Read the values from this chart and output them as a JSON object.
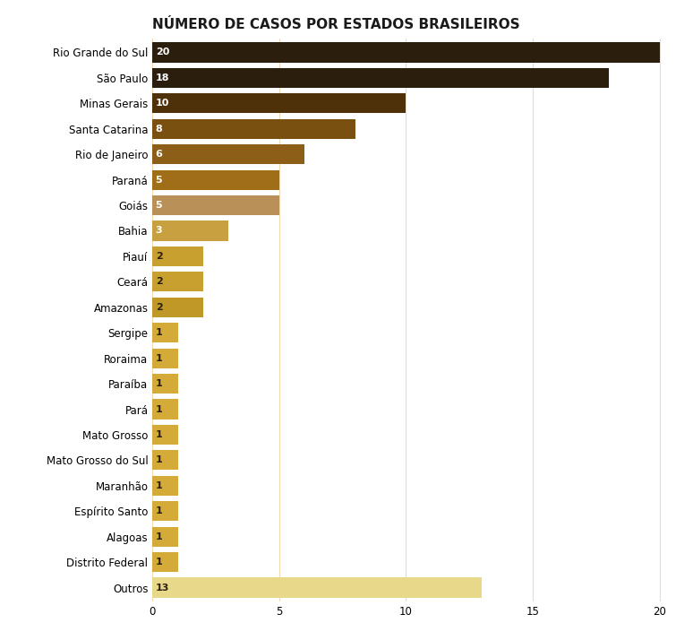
{
  "title": "NÚMERO DE CASOS POR ESTADOS BRASILEIROS",
  "categories": [
    "Rio Grande do Sul",
    "São Paulo",
    "Minas Gerais",
    "Santa Catarina",
    "Rio de Janeiro",
    "Paraná",
    "Goiás",
    "Bahia",
    "Piauí",
    "Ceará",
    "Amazonas",
    "Sergipe",
    "Roraima",
    "Paraíba",
    "Pará",
    "Mato Grosso",
    "Mato Grosso do Sul",
    "Maranhão",
    "Espírito Santo",
    "Alagoas",
    "Distrito Federal",
    "Outros"
  ],
  "values": [
    20,
    18,
    10,
    8,
    6,
    5,
    5,
    3,
    2,
    2,
    2,
    1,
    1,
    1,
    1,
    1,
    1,
    1,
    1,
    1,
    1,
    13
  ],
  "bar_colors": [
    "#2b1e0c",
    "#2b1e0c",
    "#4e3108",
    "#7a5010",
    "#8c5e18",
    "#a06e18",
    "#b89058",
    "#c8a040",
    "#c8a030",
    "#c8a030",
    "#c09828",
    "#d4aa38",
    "#d4aa38",
    "#d4aa38",
    "#d4aa38",
    "#d4aa38",
    "#d4aa38",
    "#d4aa38",
    "#d4aa38",
    "#d4aa38",
    "#d4aa38",
    "#e8d88a"
  ],
  "label_colors": [
    "#ffffff",
    "#ffffff",
    "#ffffff",
    "#ffffff",
    "#ffffff",
    "#ffffff",
    "#ffffff",
    "#ffffff",
    "#2b1e0c",
    "#2b1e0c",
    "#2b1e0c",
    "#2b1e0c",
    "#2b1e0c",
    "#2b1e0c",
    "#2b1e0c",
    "#2b1e0c",
    "#2b1e0c",
    "#2b1e0c",
    "#2b1e0c",
    "#2b1e0c",
    "#2b1e0c",
    "#2b1e0c"
  ],
  "background_color": "#ffffff",
  "grid_color": "#f5d9b0",
  "xlim": [
    0,
    20.5
  ],
  "xticks": [
    0,
    5,
    10,
    15,
    20
  ],
  "title_fontsize": 11,
  "bar_label_fontsize": 8,
  "axis_label_fontsize": 8.5,
  "bar_height": 0.78
}
